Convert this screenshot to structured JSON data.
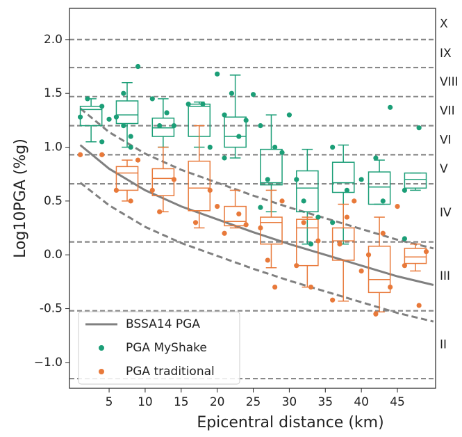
{
  "chart_data": {
    "type": "scatter-box",
    "x_label": "Epicentral distance (km)",
    "y_label": "Log10PGA (%g)",
    "xlim": [
      -0.5,
      50.3
    ],
    "ylim": [
      -1.24,
      2.29
    ],
    "xticks": [
      5,
      10,
      15,
      20,
      25,
      30,
      35,
      40,
      45
    ],
    "yticks": [
      {
        "value": -1,
        "label": "−1.0"
      },
      -0.5,
      {
        "value": 0,
        "label": "0.0"
      },
      0.5,
      {
        "value": 1,
        "label": "1.0"
      },
      1.5,
      {
        "value": 2,
        "label": "2.0"
      }
    ],
    "legend": "lower left",
    "intensity": {
      "boundaries": [
        2.0,
        1.74,
        1.47,
        1.2,
        0.93,
        0.66,
        0.12,
        -0.52,
        -1.15
      ],
      "labels": [
        "X",
        "IX",
        "VIII",
        "VII",
        "VI",
        "V",
        "IV",
        "III",
        "II"
      ],
      "color": "#888888"
    },
    "lines": [
      {
        "name": "BSSA14 PGA",
        "color": "#808080",
        "x": [
          1,
          5,
          10,
          15,
          20,
          25,
          30,
          35,
          40,
          45,
          50
        ],
        "values": [
          1.02,
          0.8,
          0.6,
          0.45,
          0.33,
          0.21,
          0.1,
          0.0,
          -0.1,
          -0.2,
          -0.28
        ]
      }
    ],
    "bounds": [
      {
        "color": "#808080",
        "x": [
          1,
          5,
          10,
          15,
          20,
          25,
          30,
          35,
          40,
          45,
          50
        ],
        "values": [
          1.36,
          1.14,
          0.94,
          0.79,
          0.67,
          0.55,
          0.44,
          0.34,
          0.24,
          0.14,
          0.06
        ]
      },
      {
        "color": "#808080",
        "x": [
          1,
          5,
          10,
          15,
          20,
          25,
          30,
          35,
          40,
          45,
          50
        ],
        "values": [
          0.67,
          0.46,
          0.26,
          0.11,
          -0.01,
          -0.13,
          -0.24,
          -0.34,
          -0.44,
          -0.54,
          -0.62
        ]
      }
    ],
    "series": [
      {
        "name": "PGA MyShake",
        "color": "#1b9e77",
        "x": [
          1,
          2,
          4,
          4,
          5,
          6,
          7,
          7,
          8,
          8,
          9,
          11,
          12,
          13,
          14,
          16,
          18,
          19,
          20,
          21,
          21,
          22,
          23,
          24,
          25,
          26,
          26,
          27,
          28,
          29,
          30,
          31,
          32,
          33,
          34,
          36,
          36,
          38,
          40,
          42,
          43,
          44,
          46,
          48,
          46
        ],
        "values": [
          1.28,
          1.45,
          1.38,
          1.05,
          1.26,
          1.28,
          1.5,
          1.2,
          1.1,
          1.0,
          1.75,
          1.45,
          1.2,
          1.32,
          1.2,
          1.4,
          1.4,
          1.0,
          1.68,
          1.3,
          0.9,
          1.5,
          1.1,
          1.25,
          1.49,
          1.2,
          0.44,
          0.7,
          1.0,
          0.95,
          1.3,
          0.7,
          0.5,
          0.1,
          0.35,
          1.0,
          0.3,
          0.6,
          0.7,
          0.9,
          0.5,
          1.37,
          0.6,
          1.18,
          0.15
        ],
        "box": {
          "x": [
            2.5,
            7.5,
            12.5,
            17.5,
            22.5,
            27.5,
            32.5,
            37.5,
            42.5,
            47.5
          ],
          "low": [
            1.05,
            1.0,
            1.0,
            1.0,
            0.9,
            0.4,
            0.1,
            0.1,
            0.47,
            0.6
          ],
          "q1": [
            1.2,
            1.22,
            1.1,
            1.1,
            1.0,
            0.65,
            0.4,
            0.58,
            0.47,
            0.62
          ],
          "median": [
            1.35,
            1.3,
            1.18,
            1.38,
            1.1,
            0.67,
            0.62,
            0.67,
            0.63,
            0.7
          ],
          "q3": [
            1.38,
            1.43,
            1.27,
            1.4,
            1.28,
            0.98,
            0.78,
            0.86,
            0.77,
            0.76
          ],
          "high": [
            1.45,
            1.6,
            1.45,
            1.42,
            1.67,
            1.3,
            0.98,
            1.02,
            0.88,
            0.76
          ]
        }
      },
      {
        "name": "PGA traditional",
        "color": "#e8793a",
        "x": [
          1,
          4,
          6,
          8,
          9,
          11,
          12,
          14,
          17,
          19,
          20,
          21,
          23,
          24,
          26,
          27,
          28,
          29,
          31,
          32,
          33,
          34,
          36,
          37,
          38,
          39,
          40,
          41,
          42,
          43,
          44,
          46,
          48,
          49,
          45
        ],
        "values": [
          0.93,
          0.93,
          0.6,
          0.5,
          0.88,
          0.6,
          0.4,
          0.7,
          0.3,
          0.6,
          0.45,
          0.2,
          0.38,
          0.28,
          0.25,
          -0.05,
          -0.3,
          0.5,
          -0.1,
          0.3,
          -0.3,
          0.13,
          -0.42,
          0.1,
          0.35,
          0.5,
          -0.15,
          0.0,
          -0.55,
          0.2,
          -0.3,
          -0.1,
          -0.47,
          0.03,
          0.45
        ],
        "box": {
          "x": [
            7.5,
            12.5,
            17.5,
            22.5,
            27.5,
            32.5,
            37.5,
            42.5,
            47.5
          ],
          "low": [
            0.5,
            0.4,
            0.25,
            0.25,
            -0.12,
            -0.3,
            -0.43,
            -0.53,
            -0.15
          ],
          "q1": [
            0.6,
            0.55,
            0.41,
            0.27,
            0.1,
            -0.1,
            -0.05,
            -0.35,
            -0.08
          ],
          "median": [
            0.76,
            0.71,
            0.62,
            0.31,
            0.3,
            0.25,
            0.13,
            -0.23,
            -0.02
          ],
          "q3": [
            0.82,
            0.8,
            0.87,
            0.45,
            0.35,
            0.33,
            0.25,
            0.08,
            0.06
          ],
          "high": [
            0.88,
            1.0,
            1.2,
            0.6,
            0.6,
            0.35,
            0.47,
            0.35,
            0.1
          ]
        }
      }
    ]
  }
}
